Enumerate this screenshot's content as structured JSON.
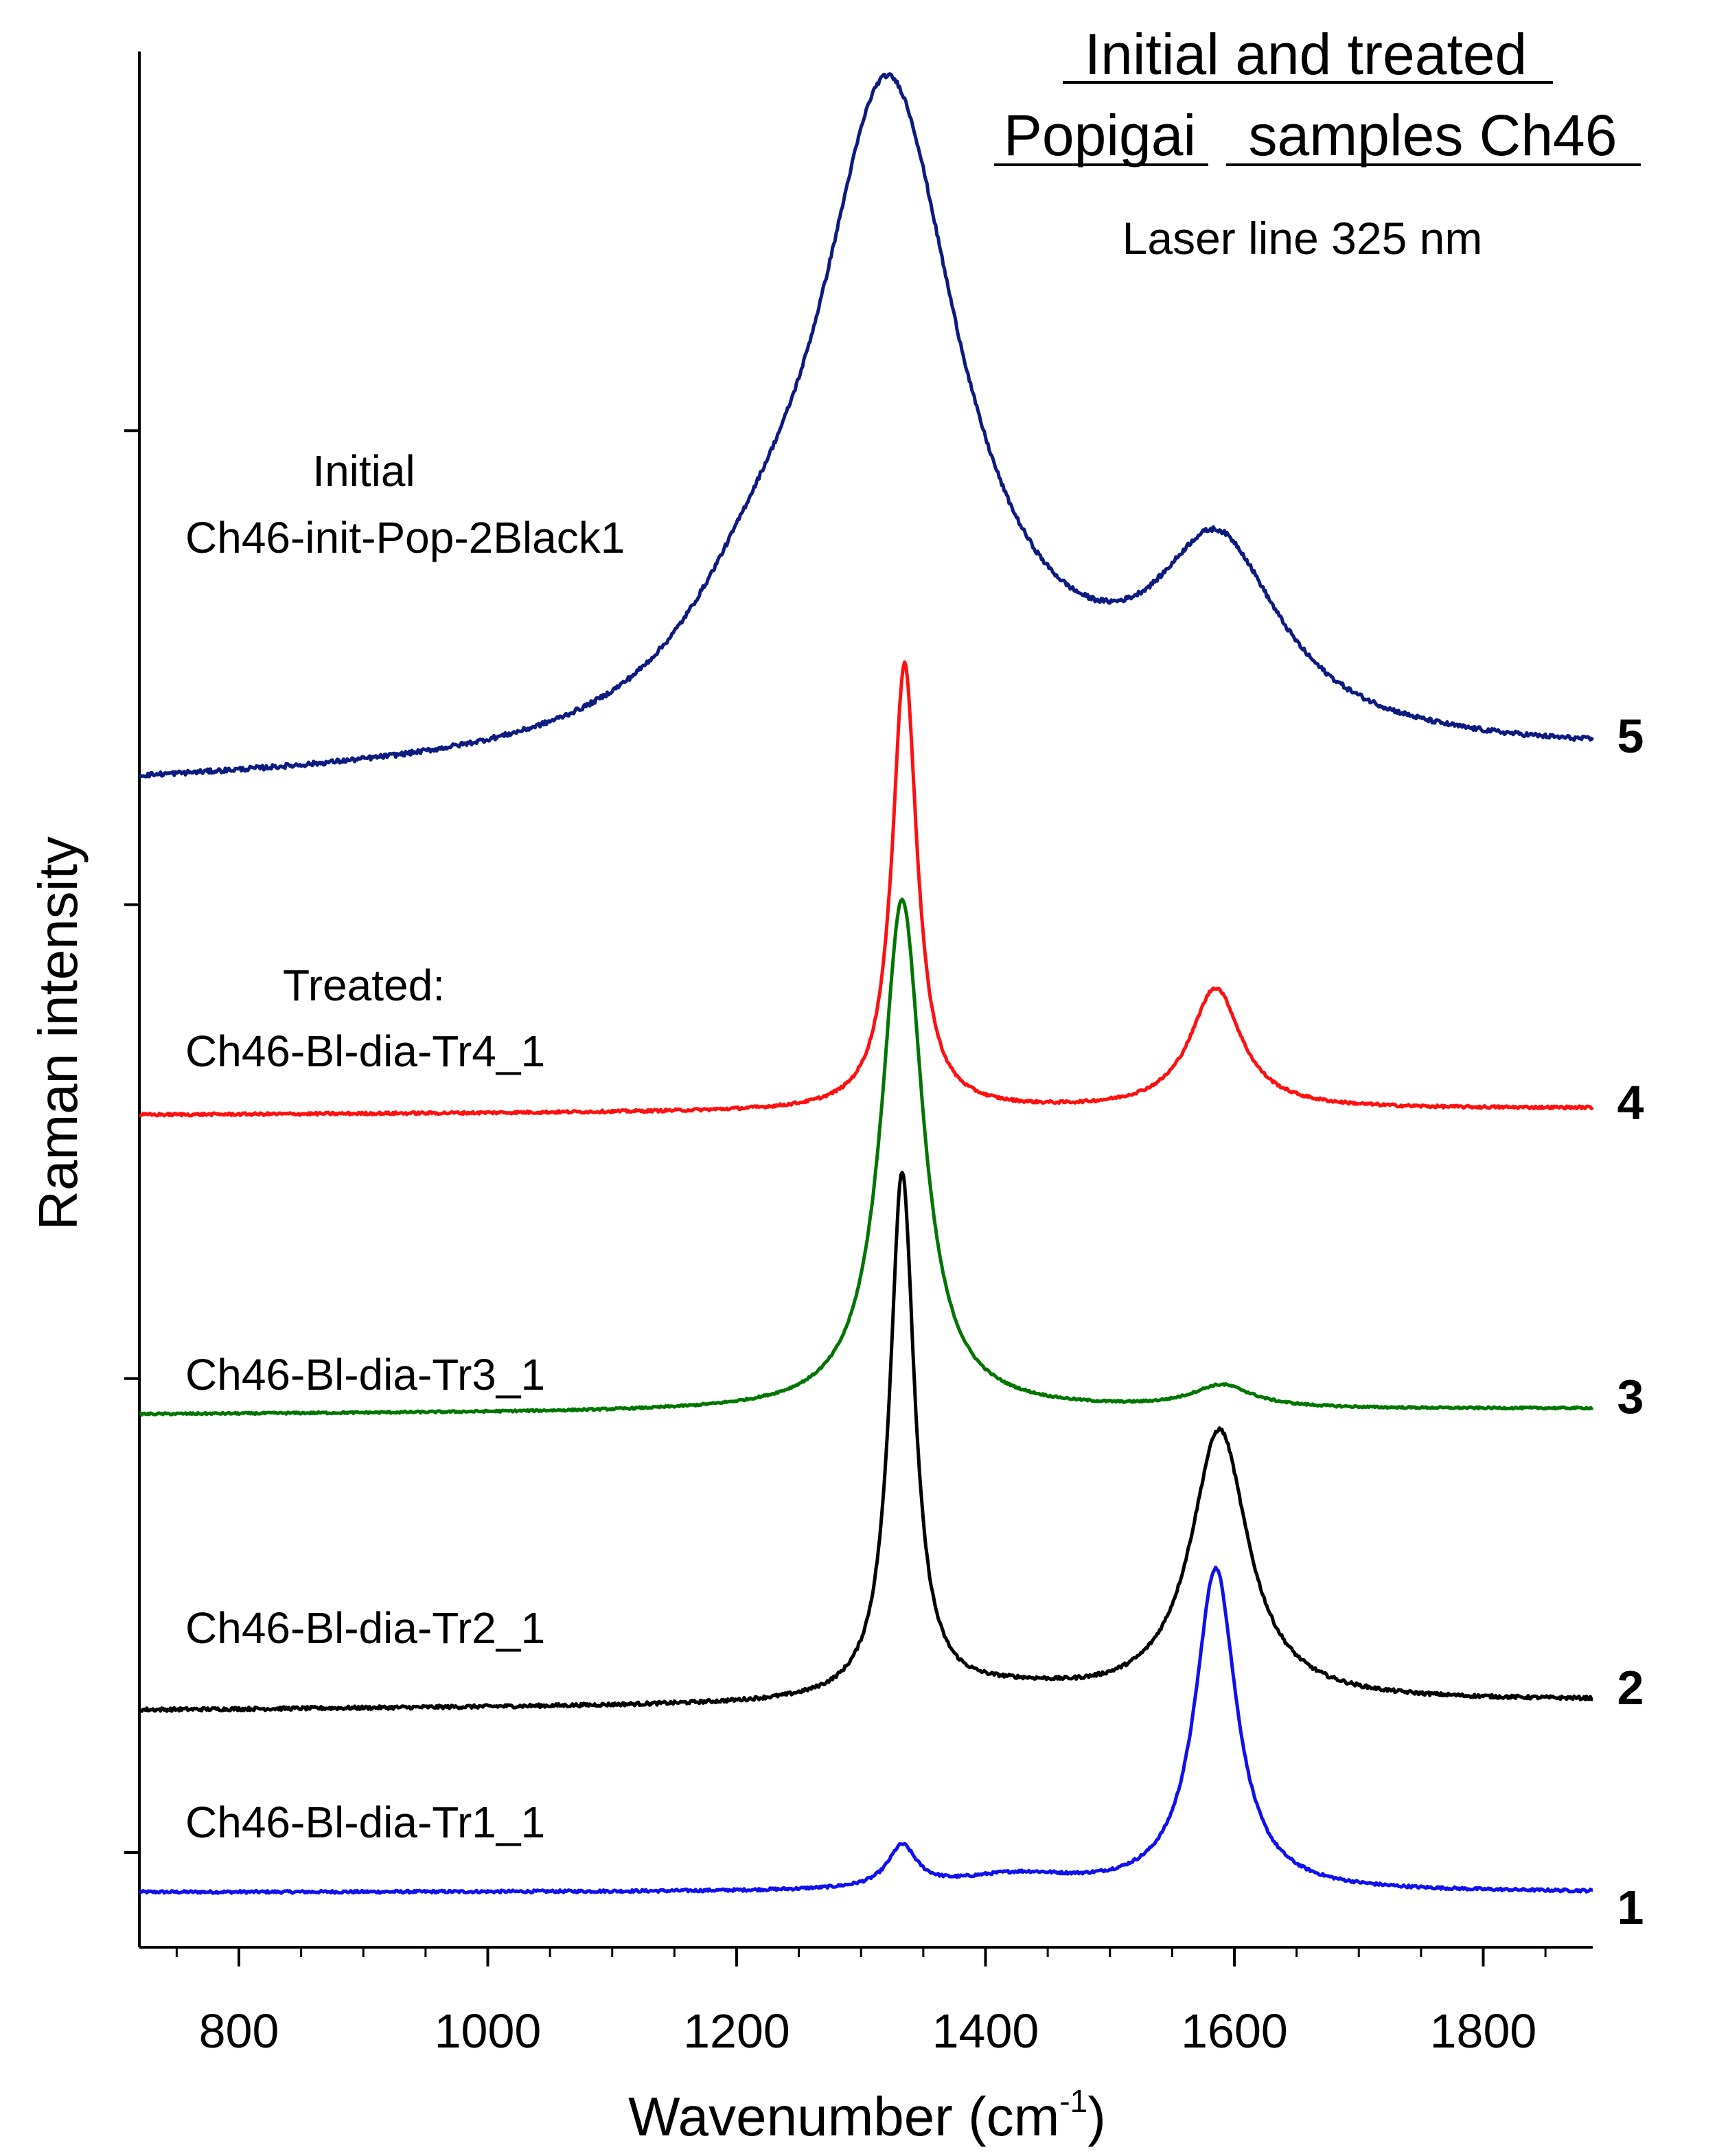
{
  "chart_data": {
    "type": "line",
    "title_line1": "Initial and treated",
    "title_line2a": "Popigai",
    "title_line2b": "samples Ch46",
    "subtitle": "Laser line 325 nm",
    "xlabel_main": "Wavenumber (cm",
    "xlabel_sup": "-1",
    "xlabel_close": ")",
    "ylabel": "Raman intensity",
    "xlim": [
      720,
      1888
    ],
    "ylim": [
      0,
      100
    ],
    "x_ticks": [
      800,
      1000,
      1200,
      1400,
      1600,
      1800
    ],
    "x_tick_labels": [
      "800",
      "1000",
      "1200",
      "1400",
      "1600",
      "1800"
    ],
    "x_minor_step": 50,
    "y_ticks": [
      5,
      30,
      55,
      80
    ],
    "y_tick_labels": [],
    "label_initial_header": "Initial",
    "label_treated_header": "Treated:",
    "series": [
      {
        "id": 1,
        "number_label": "1",
        "name": "Ch46-Bl-dia-Tr1_1",
        "color": "#1010ee",
        "baseline": 2.9,
        "slope": 0.0,
        "noise": 0.07,
        "peaks": [
          {
            "center": 1333,
            "height": 2.2,
            "width": 14
          },
          {
            "center": 1425,
            "height": 0.8,
            "width": 60
          },
          {
            "center": 1585,
            "height": 17.0,
            "width": 20
          }
        ]
      },
      {
        "id": 2,
        "number_label": "2",
        "name": "Ch46-Bl-dia-Tr2_1",
        "color": "#000000",
        "baseline": 12.5,
        "slope": 0.000427,
        "noise": 0.09,
        "peaks": [
          {
            "center": 1333,
            "height": 27.8,
            "width": 12
          },
          {
            "center": 1425,
            "height": 0.6,
            "width": 70
          },
          {
            "center": 1588,
            "height": 14.3,
            "width": 28
          }
        ]
      },
      {
        "id": 3,
        "number_label": "3",
        "name": "Ch46-Bl-dia-Tr3_1",
        "color": "#007500",
        "baseline": 28.1,
        "slope": 0.000256,
        "noise": 0.05,
        "peaks": [
          {
            "center": 1333,
            "height": 27.0,
            "width": 20
          },
          {
            "center": 1590,
            "height": 1.2,
            "width": 30
          }
        ]
      },
      {
        "id": 4,
        "number_label": "4",
        "name": "Ch46-Bl-dia-Tr4_1",
        "color": "#ff1010",
        "baseline": 43.9,
        "slope": 0.000299,
        "noise": 0.07,
        "peaks": [
          {
            "center": 1335,
            "height": 23.6,
            "width": 12
          },
          {
            "center": 1585,
            "height": 6.4,
            "width": 25
          }
        ]
      },
      {
        "id": 5,
        "number_label": "5",
        "name": "Ch46-init-Pop-2Black1",
        "color": "#0d1a80",
        "baseline": 61.2,
        "slope": 0.00128,
        "noise": 0.12,
        "peaks": [
          {
            "center": 1322,
            "height": 34.5,
            "width": 70
          },
          {
            "center": 1215,
            "height": 4.5,
            "width": 70
          },
          {
            "center": 1587,
            "height": 9.5,
            "width": 60
          },
          {
            "center": 1470,
            "height": 0.9,
            "width": 150
          }
        ]
      }
    ]
  }
}
